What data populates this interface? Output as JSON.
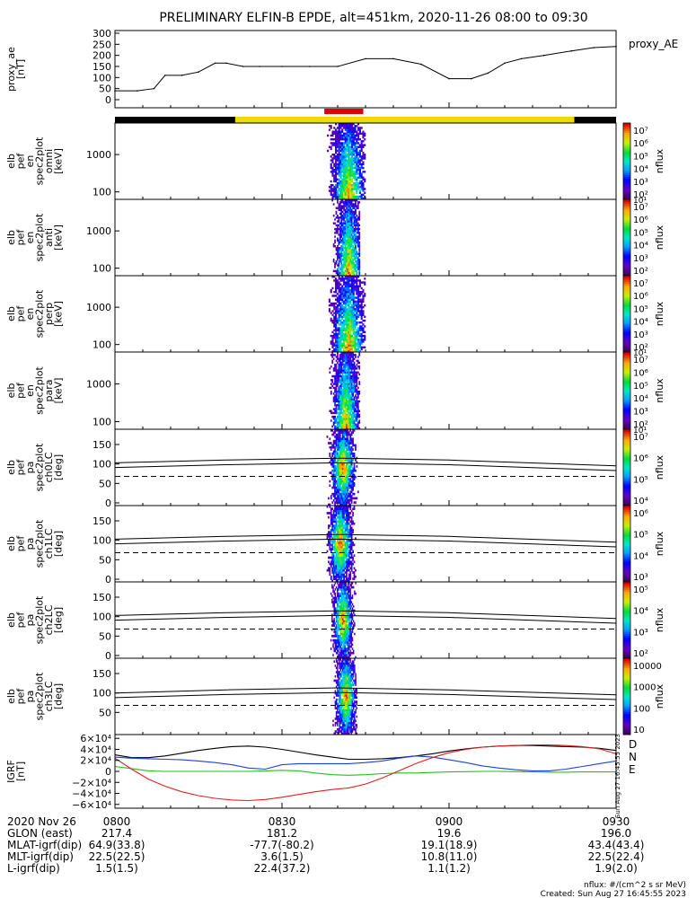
{
  "title": "PRELIMINARY ELFIN-B EPDE, alt=451km, 2020-11-26 08:00 to 09:30",
  "chart_data": [
    {
      "type": "line",
      "ylabel": [
        "proxy_ae",
        "[nT]"
      ],
      "legend": "proxy_AE",
      "ylim": [
        0,
        300
      ],
      "yticks": [
        "0",
        "50",
        "100",
        "150",
        "200",
        "250",
        "300"
      ],
      "x_minutes": [
        0,
        4,
        7,
        9,
        12,
        15,
        18,
        20,
        23,
        26,
        30,
        35,
        40,
        45,
        50,
        55,
        60,
        64,
        67,
        70,
        73,
        77,
        82,
        86,
        90
      ],
      "values": [
        40,
        40,
        50,
        110,
        110,
        125,
        165,
        165,
        150,
        150,
        150,
        150,
        150,
        185,
        185,
        160,
        95,
        95,
        120,
        165,
        185,
        200,
        220,
        235,
        240
      ]
    },
    {
      "type": "status_bar",
      "segments": [
        {
          "from_min": 0,
          "to_min": 21.6,
          "color": "#000000"
        },
        {
          "from_min": 21.6,
          "to_min": 82.5,
          "color": "#f5d800"
        },
        {
          "from_min": 82.5,
          "to_min": 90,
          "color": "#000000"
        }
      ],
      "science_zone": {
        "from_min": 37.6,
        "to_min": 44.6,
        "color": "#e00000"
      }
    },
    {
      "type": "heatmap",
      "ylabel": [
        "elb",
        "pef",
        "en",
        "spec2plot",
        "omni",
        "[keV]"
      ],
      "y_log": true,
      "ylim": [
        63,
        7000
      ],
      "yticks": [
        "100",
        "1000"
      ],
      "x_range_min": [
        37.5,
        45
      ],
      "peak_x_min": 42.0,
      "colorbar": {
        "label": "nflux",
        "labels": [
          "10²",
          "10³",
          "10⁴",
          "10⁵",
          "10⁶",
          "10⁷"
        ],
        "range_log": [
          2,
          7
        ],
        "top_label_extra": "10¹"
      }
    },
    {
      "type": "heatmap",
      "ylabel": [
        "elb",
        "pef",
        "en",
        "spec2plot",
        "anti",
        "[keV]"
      ],
      "y_log": true,
      "ylim": [
        63,
        7000
      ],
      "yticks": [
        "100",
        "1000"
      ],
      "x_range_min": [
        38,
        44
      ],
      "peak_x_min": 42.0,
      "colorbar": {
        "label": "nflux",
        "labels": [
          "10²",
          "10³",
          "10⁴",
          "10⁵",
          "10⁶",
          "10⁷"
        ],
        "range_log": [
          2,
          7
        ]
      }
    },
    {
      "type": "heatmap",
      "ylabel": [
        "elb",
        "pef",
        "en",
        "spec2plot",
        "perp",
        "[keV]"
      ],
      "y_log": true,
      "ylim": [
        63,
        7000
      ],
      "yticks": [
        "100",
        "1000"
      ],
      "x_range_min": [
        37.5,
        45
      ],
      "peak_x_min": 42.0,
      "colorbar": {
        "label": "nflux",
        "labels": [
          "10²",
          "10³",
          "10⁴",
          "10⁵",
          "10⁶",
          "10⁷"
        ],
        "range_log": [
          2,
          7
        ],
        "top_label_extra": "10¹"
      }
    },
    {
      "type": "heatmap",
      "ylabel": [
        "elb",
        "pef",
        "en",
        "spec2plot",
        "para",
        "[keV]"
      ],
      "y_log": true,
      "ylim": [
        63,
        7000
      ],
      "yticks": [
        "100",
        "1000"
      ],
      "x_range_min": [
        38,
        44
      ],
      "peak_x_min": 41.5,
      "colorbar": {
        "label": "nflux",
        "labels": [
          "10²",
          "10³",
          "10⁴",
          "10⁵",
          "10⁶",
          "10⁷"
        ],
        "range_log": [
          2,
          7
        ],
        "top_label_extra": "10¹"
      }
    },
    {
      "type": "heatmap",
      "ylabel": [
        "elb",
        "pef",
        "pa",
        "spec2plot",
        "ch0LC",
        "[deg]"
      ],
      "ylim": [
        0,
        180
      ],
      "yticks": [
        "0",
        "50",
        "100",
        "150"
      ],
      "x_range_min": [
        38,
        44
      ],
      "peak_x_min": 41.0,
      "overlay_solid_deg": {
        "x_minutes": [
          0,
          20,
          40,
          60,
          90
        ],
        "values": [
          103,
          110,
          115,
          110,
          95
        ]
      },
      "overlay_dashed_deg": 68,
      "colorbar": {
        "label": "nflux",
        "labels": [
          "10⁴",
          "10⁵",
          "10⁶",
          "10⁷"
        ],
        "range_log": [
          3.5,
          7
        ]
      }
    },
    {
      "type": "heatmap",
      "ylabel": [
        "elb",
        "pef",
        "pa",
        "spec2plot",
        "ch1LC",
        "[deg]"
      ],
      "ylim": [
        0,
        180
      ],
      "yticks": [
        "0",
        "50",
        "100",
        "150"
      ],
      "x_range_min": [
        38,
        44
      ],
      "peak_x_min": 40.5,
      "overlay_solid_deg": {
        "x_minutes": [
          0,
          20,
          40,
          60,
          90
        ],
        "values": [
          103,
          110,
          115,
          110,
          95
        ]
      },
      "overlay_dashed_deg": 68,
      "colorbar": {
        "label": "nflux",
        "labels": [
          "10³",
          "10⁴",
          "10⁵",
          "10⁶"
        ],
        "range_log": [
          2.5,
          6
        ]
      }
    },
    {
      "type": "heatmap",
      "ylabel": [
        "elb",
        "pef",
        "pa",
        "spec2plot",
        "ch2LC",
        "[deg]"
      ],
      "ylim": [
        0,
        180
      ],
      "yticks": [
        "0",
        "50",
        "100",
        "150"
      ],
      "x_range_min": [
        38.5,
        43.5
      ],
      "peak_x_min": 41.0,
      "overlay_solid_deg": {
        "x_minutes": [
          0,
          20,
          40,
          60,
          90
        ],
        "values": [
          103,
          110,
          115,
          110,
          95
        ]
      },
      "overlay_dashed_deg": 68,
      "colorbar": {
        "label": "nflux",
        "labels": [
          "10²",
          "10³",
          "10⁴",
          "10⁵"
        ],
        "range_log": [
          1.7,
          5.3
        ]
      }
    },
    {
      "type": "heatmap",
      "ylabel": [
        "elb",
        "pef",
        "pa",
        "spec2plot",
        "ch3LC",
        "[deg]"
      ],
      "ylim": [
        0,
        180
      ],
      "yticks": [
        "50",
        "100",
        "150"
      ],
      "x_range_min": [
        38.5,
        43.5
      ],
      "peak_x_min": 41.5,
      "overlay_solid_deg": {
        "x_minutes": [
          0,
          20,
          40,
          60,
          90
        ],
        "values": [
          100,
          108,
          113,
          108,
          95
        ]
      },
      "overlay_dashed_deg": 68,
      "colorbar": {
        "label": "nflux",
        "labels": [
          "10",
          "100",
          "1000",
          "10000"
        ],
        "range_log": [
          1,
          4.3
        ]
      }
    },
    {
      "type": "line",
      "ylabel": [
        "IGRF",
        "[nT]"
      ],
      "ylim": [
        -62000,
        62000
      ],
      "yticks": [
        "−6×10⁴",
        "−4×10⁴",
        "−2×10⁴",
        "0",
        "2×10⁴",
        "4×10⁴",
        "6×10⁴"
      ],
      "x_minutes": [
        0,
        3,
        6,
        9,
        12,
        15,
        18,
        21,
        24,
        27,
        30,
        33,
        36,
        39,
        42,
        45,
        48,
        51,
        54,
        57,
        60,
        63,
        66,
        69,
        72,
        75,
        78,
        81,
        84,
        87,
        90
      ],
      "series": [
        {
          "name": "D",
          "color": "#000000",
          "values": [
            30000,
            25000,
            25000,
            28000,
            33000,
            38000,
            42000,
            45000,
            46000,
            44000,
            40000,
            35000,
            30000,
            26000,
            22000,
            22000,
            23000,
            25000,
            28000,
            32000,
            37000,
            41000,
            44000,
            46000,
            47000,
            47000,
            46000,
            45000,
            44000,
            42000,
            38000
          ]
        },
        {
          "name": "N",
          "color": "#2040e0",
          "values": [
            26000,
            24000,
            23000,
            22000,
            21000,
            19000,
            16000,
            12000,
            6000,
            4000,
            12000,
            14000,
            14000,
            14000,
            14000,
            16000,
            19000,
            24000,
            28000,
            26000,
            21000,
            16000,
            10000,
            6000,
            3000,
            1000,
            1000,
            4000,
            9000,
            14000,
            19000
          ]
        },
        {
          "name": "E",
          "color": "#20c020",
          "values": [
            9000,
            5000,
            1000,
            0,
            0,
            0,
            0,
            0,
            0,
            1000,
            2000,
            1000,
            -3000,
            -6000,
            -7000,
            -6000,
            -4000,
            -3000,
            -3000,
            -2000,
            -1000,
            -500,
            0,
            0,
            -500,
            -1000,
            -1500,
            -1500,
            -1000,
            -1000,
            -1000
          ]
        },
        {
          "name": "",
          "color": "#e02020",
          "values": [
            24000,
            4000,
            -14000,
            -27000,
            -37000,
            -44000,
            -49000,
            -52000,
            -53000,
            -51000,
            -47000,
            -42000,
            -37000,
            -33000,
            -30000,
            -23000,
            -12000,
            1000,
            14000,
            25000,
            34000,
            40000,
            44000,
            46000,
            47000,
            48000,
            48000,
            47000,
            45000,
            41000,
            32000
          ]
        }
      ]
    }
  ],
  "xaxis": {
    "row_labels": [
      "2020 Nov 26",
      "GLON (east)",
      "MLAT-igrf(dip)",
      "MLT-igrf(dip)",
      "L-igrf(dip)"
    ],
    "ticks": [
      {
        "minute": 0,
        "values": [
          "0800",
          "217.4",
          "64.9(33.8)",
          "22.5(22.5)",
          "1.5(1.5)"
        ]
      },
      {
        "minute": 30,
        "values": [
          "0830",
          "181.2",
          "-77.7(-80.2)",
          "3.6(1.5)",
          "22.4(37.2)"
        ]
      },
      {
        "minute": 60,
        "values": [
          "0900",
          "19.6",
          "19.1(18.9)",
          "10.8(11.0)",
          "1.1(1.2)"
        ]
      },
      {
        "minute": 90,
        "values": [
          "0930",
          "196.0",
          "43.4(43.4)",
          "22.5(22.4)",
          "1.9(2.0)"
        ]
      }
    ]
  },
  "footer": {
    "units": "nflux: #/(cm^2 s sr MeV)",
    "created": "Created: Sun Aug 27 16:45:55 2023",
    "side_stamp": "Sun Aug 27 16:45:55 2023"
  }
}
